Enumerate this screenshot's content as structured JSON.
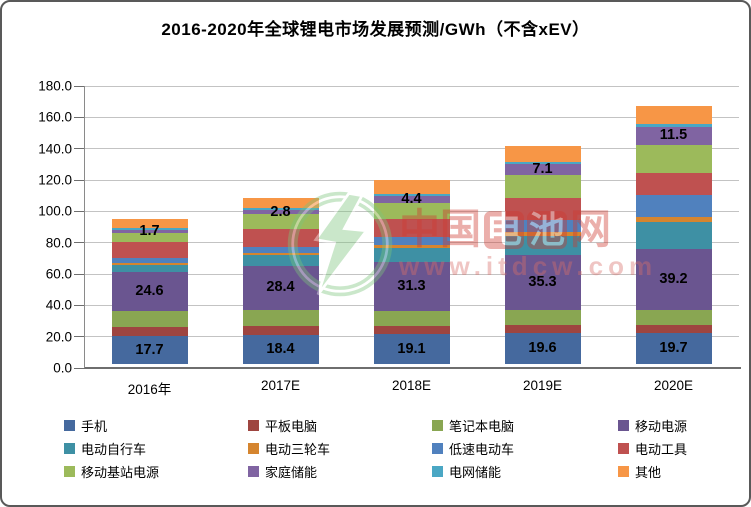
{
  "title": "2016-2020年全球锂电市场发展预测/GWh（不含xEV）",
  "watermark": {
    "site_name_prefix": "中国",
    "site_name_boxed1": "电",
    "site_name_boxed2": "池",
    "site_name_suffix": "网",
    "site_url": "www.itdcw.com",
    "logo_color": "#7cc47c",
    "text_color": "#cf3a30"
  },
  "chart_data": {
    "type": "bar",
    "stacked": true,
    "title": "2016-2020年全球锂电市场发展预测/GWh（不含xEV）",
    "xlabel": "",
    "ylabel": "",
    "categories": [
      "2016年",
      "2017E",
      "2018E",
      "2019E",
      "2020E"
    ],
    "ylim": [
      0,
      180
    ],
    "ytick_step": 20,
    "ytick_labels": [
      "0.0",
      "20.0",
      "40.0",
      "60.0",
      "80.0",
      "100.0",
      "120.0",
      "140.0",
      "160.0",
      "180.0"
    ],
    "grid": true,
    "legend_position": "bottom",
    "series": [
      {
        "name": "手机",
        "color": "#45699E",
        "values": [
          17.7,
          18.4,
          19.1,
          19.6,
          19.7
        ],
        "labeled": true
      },
      {
        "name": "平板电脑",
        "color": "#9E4540",
        "values": [
          5.7,
          5.7,
          4.9,
          5.1,
          5.3
        ],
        "labeled": false
      },
      {
        "name": "笔记本电脑",
        "color": "#89A652",
        "values": [
          10.6,
          10.4,
          10.0,
          9.8,
          9.5
        ],
        "labeled": false
      },
      {
        "name": "移动电源",
        "color": "#6A5590",
        "values": [
          24.6,
          28.4,
          31.3,
          35.3,
          39.2
        ],
        "labeled": true
      },
      {
        "name": "电动自行车",
        "color": "#3E90A4",
        "values": [
          4.9,
          6.4,
          8.9,
          12.1,
          17.2
        ],
        "labeled": false
      },
      {
        "name": "电动三轮车",
        "color": "#D5852F",
        "values": [
          1.1,
          1.5,
          1.7,
          2.1,
          2.8
        ],
        "labeled": false
      },
      {
        "name": "低速电动车",
        "color": "#5081BE",
        "values": [
          3.2,
          4.2,
          5.3,
          8.1,
          14.0
        ],
        "labeled": false
      },
      {
        "name": "电动工具",
        "color": "#BF5150",
        "values": [
          10.0,
          11.0,
          11.7,
          13.8,
          14.4
        ],
        "labeled": false
      },
      {
        "name": "移动基站电源",
        "color": "#9CBA5B",
        "values": [
          5.9,
          9.5,
          10.0,
          14.6,
          18.0
        ],
        "labeled": false
      },
      {
        "name": "家庭储能",
        "color": "#8064A2",
        "values": [
          1.7,
          2.8,
          4.4,
          7.1,
          11.5
        ],
        "labeled": true
      },
      {
        "name": "电网储能",
        "color": "#4AA7C4",
        "values": [
          1.3,
          1.5,
          1.5,
          1.5,
          1.7
        ],
        "labeled": false
      },
      {
        "name": "其他",
        "color": "#F79646",
        "values": [
          5.9,
          6.4,
          8.9,
          10.2,
          11.4
        ],
        "labeled": false
      }
    ],
    "data_label_note": "labels shown only for 手机 / 移动电源 / 家庭储能 series"
  }
}
